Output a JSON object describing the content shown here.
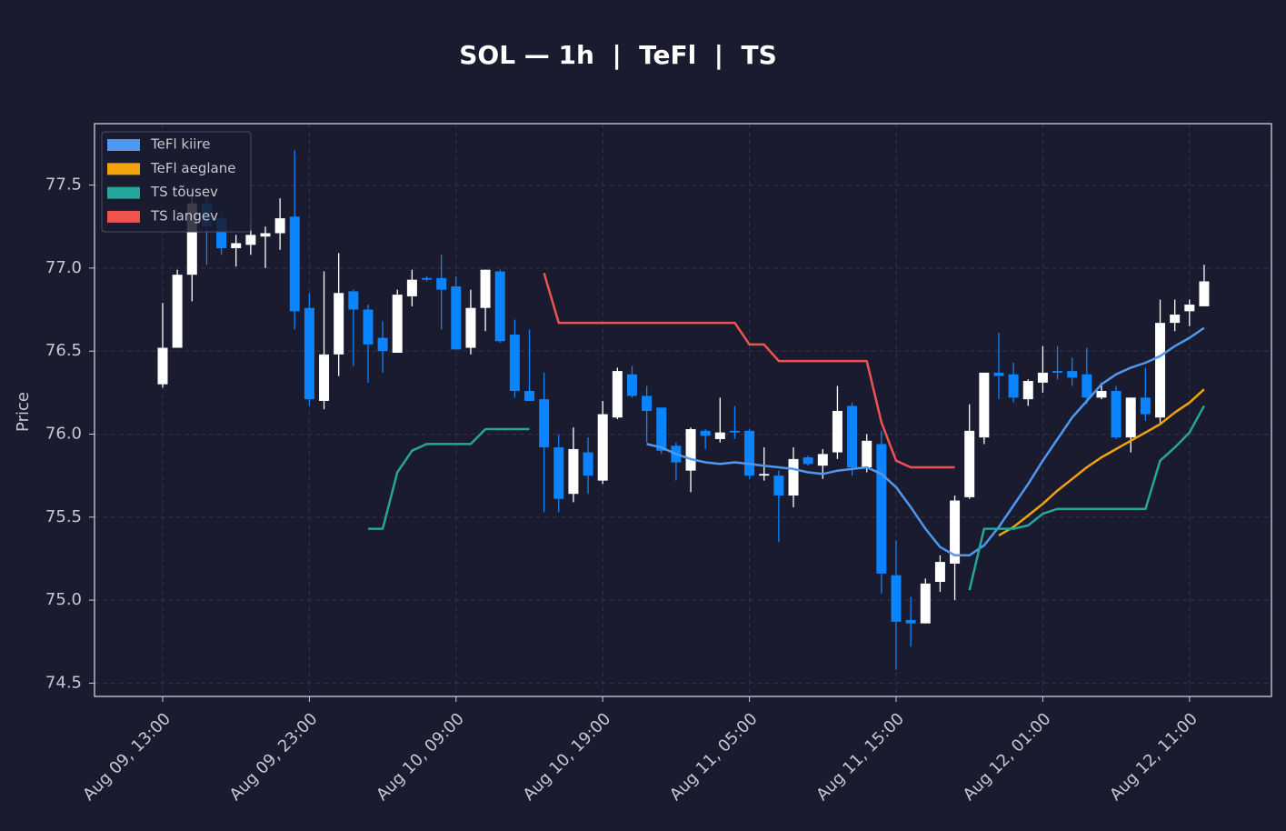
{
  "chart_data": {
    "type": "candlestick",
    "title": "SOL — 1h  |  TeFl  |  TS",
    "y_label": "Price",
    "x": [
      "Aug 09, 13:00",
      "Aug 09, 14:00",
      "Aug 09, 15:00",
      "Aug 09, 16:00",
      "Aug 09, 17:00",
      "Aug 09, 18:00",
      "Aug 09, 19:00",
      "Aug 09, 20:00",
      "Aug 09, 21:00",
      "Aug 09, 22:00",
      "Aug 09, 23:00",
      "Aug 10, 00:00",
      "Aug 10, 01:00",
      "Aug 10, 02:00",
      "Aug 10, 03:00",
      "Aug 10, 04:00",
      "Aug 10, 05:00",
      "Aug 10, 06:00",
      "Aug 10, 07:00",
      "Aug 10, 08:00",
      "Aug 10, 09:00",
      "Aug 10, 10:00",
      "Aug 10, 11:00",
      "Aug 10, 12:00",
      "Aug 10, 13:00",
      "Aug 10, 14:00",
      "Aug 10, 15:00",
      "Aug 10, 16:00",
      "Aug 10, 17:00",
      "Aug 10, 18:00",
      "Aug 10, 19:00",
      "Aug 10, 20:00",
      "Aug 10, 21:00",
      "Aug 10, 22:00",
      "Aug 10, 23:00",
      "Aug 11, 00:00",
      "Aug 11, 01:00",
      "Aug 11, 02:00",
      "Aug 11, 03:00",
      "Aug 11, 04:00",
      "Aug 11, 05:00",
      "Aug 11, 06:00",
      "Aug 11, 07:00",
      "Aug 11, 08:00",
      "Aug 11, 09:00",
      "Aug 11, 10:00",
      "Aug 11, 11:00",
      "Aug 11, 12:00",
      "Aug 11, 13:00",
      "Aug 11, 14:00",
      "Aug 11, 15:00",
      "Aug 11, 16:00",
      "Aug 11, 17:00",
      "Aug 11, 18:00",
      "Aug 11, 19:00",
      "Aug 11, 20:00",
      "Aug 11, 21:00",
      "Aug 11, 22:00",
      "Aug 11, 23:00",
      "Aug 12, 00:00",
      "Aug 12, 01:00",
      "Aug 12, 02:00",
      "Aug 12, 03:00",
      "Aug 12, 04:00",
      "Aug 12, 05:00",
      "Aug 12, 06:00",
      "Aug 12, 07:00",
      "Aug 12, 08:00",
      "Aug 12, 09:00",
      "Aug 12, 10:00",
      "Aug 12, 11:00",
      "Aug 12, 12:00"
    ],
    "open": [
      76.3,
      76.52,
      76.96,
      77.39,
      77.3,
      77.12,
      77.14,
      77.19,
      77.21,
      77.31,
      76.76,
      76.2,
      76.48,
      76.86,
      76.75,
      76.58,
      76.49,
      76.83,
      76.94,
      76.94,
      76.89,
      76.52,
      76.76,
      76.98,
      76.6,
      76.26,
      76.21,
      75.92,
      75.64,
      75.89,
      75.72,
      76.1,
      76.36,
      76.23,
      76.16,
      75.93,
      75.78,
      76.02,
      75.97,
      76.02,
      76.02,
      75.75,
      75.75,
      75.63,
      75.86,
      75.81,
      75.89,
      76.17,
      75.8,
      75.94,
      75.15,
      74.88,
      74.86,
      75.11,
      75.22,
      75.62,
      75.98,
      76.37,
      76.36,
      76.21,
      76.31,
      76.38,
      76.38,
      76.36,
      76.22,
      76.26,
      75.98,
      76.22,
      76.1,
      76.67,
      76.74,
      76.77
    ],
    "high": [
      76.79,
      76.99,
      77.45,
      77.45,
      77.34,
      77.2,
      77.27,
      77.25,
      77.42,
      77.71,
      76.85,
      76.98,
      77.09,
      76.87,
      76.78,
      76.68,
      76.87,
      76.99,
      76.95,
      77.08,
      76.95,
      76.87,
      76.99,
      76.99,
      76.69,
      76.63,
      76.37,
      76.0,
      76.04,
      75.98,
      76.2,
      76.4,
      76.41,
      76.29,
      76.16,
      75.95,
      76.04,
      76.03,
      76.22,
      76.17,
      76.03,
      75.92,
      75.78,
      75.92,
      75.87,
      75.91,
      76.29,
      76.19,
      76.0,
      76.02,
      75.36,
      75.02,
      75.13,
      75.27,
      75.63,
      76.18,
      76.37,
      76.61,
      76.43,
      76.33,
      76.53,
      76.53,
      76.46,
      76.52,
      76.31,
      76.29,
      76.22,
      76.4,
      76.81,
      76.81,
      76.81,
      77.02
    ],
    "low": [
      76.28,
      76.52,
      76.8,
      77.02,
      77.08,
      77.01,
      77.08,
      77.0,
      77.11,
      76.63,
      76.17,
      76.15,
      76.35,
      76.41,
      76.31,
      76.37,
      76.49,
      76.77,
      76.92,
      76.63,
      76.51,
      76.48,
      76.62,
      76.55,
      76.22,
      76.2,
      75.53,
      75.53,
      75.59,
      75.64,
      75.7,
      76.09,
      76.22,
      75.95,
      75.88,
      75.72,
      75.65,
      75.91,
      75.95,
      75.97,
      75.73,
      75.72,
      75.35,
      75.56,
      75.81,
      75.73,
      75.85,
      75.75,
      75.77,
      75.04,
      74.58,
      74.72,
      74.86,
      75.05,
      75.0,
      75.61,
      75.94,
      76.21,
      76.19,
      76.17,
      76.25,
      76.33,
      76.29,
      76.18,
      76.21,
      75.97,
      75.89,
      76.08,
      76.07,
      76.62,
      76.65,
      76.77
    ],
    "close": [
      76.52,
      76.96,
      77.39,
      77.25,
      77.12,
      77.15,
      77.2,
      77.21,
      77.3,
      76.74,
      76.21,
      76.48,
      76.85,
      76.75,
      76.54,
      76.5,
      76.84,
      76.93,
      76.93,
      76.87,
      76.51,
      76.76,
      76.99,
      76.56,
      76.26,
      76.2,
      75.92,
      75.61,
      75.91,
      75.75,
      76.12,
      76.38,
      76.23,
      76.14,
      75.9,
      75.83,
      76.03,
      75.99,
      76.01,
      76.01,
      75.75,
      75.76,
      75.63,
      75.85,
      75.82,
      75.88,
      76.14,
      75.8,
      75.96,
      75.16,
      74.87,
      74.86,
      75.1,
      75.23,
      75.6,
      76.02,
      76.37,
      76.35,
      76.22,
      76.32,
      76.37,
      76.37,
      76.34,
      76.22,
      76.26,
      75.98,
      76.22,
      76.12,
      76.67,
      76.72,
      76.78,
      76.92
    ],
    "up_color": "#ffffff",
    "down_color": "#0a84ff",
    "series": [
      {
        "name": "TeFl kiire",
        "color": "#4f97ef",
        "values": [
          null,
          null,
          null,
          null,
          null,
          null,
          null,
          null,
          null,
          null,
          null,
          null,
          null,
          null,
          null,
          null,
          null,
          null,
          null,
          null,
          null,
          null,
          null,
          null,
          null,
          null,
          null,
          null,
          null,
          null,
          null,
          null,
          null,
          75.94,
          75.92,
          75.88,
          75.85,
          75.83,
          75.82,
          75.83,
          75.82,
          75.81,
          75.8,
          75.79,
          75.77,
          75.76,
          75.78,
          75.79,
          75.8,
          75.76,
          75.68,
          75.56,
          75.43,
          75.32,
          75.27,
          75.27,
          75.33,
          75.44,
          75.57,
          75.7,
          75.84,
          75.97,
          76.1,
          76.2,
          76.3,
          76.36,
          76.4,
          76.43,
          76.47,
          76.53,
          76.58,
          76.64
        ]
      },
      {
        "name": "TeFl aeglane",
        "color": "#f0a30a",
        "values": [
          null,
          null,
          null,
          null,
          null,
          null,
          null,
          null,
          null,
          null,
          null,
          null,
          null,
          null,
          null,
          null,
          null,
          null,
          null,
          null,
          null,
          null,
          null,
          null,
          null,
          null,
          null,
          null,
          null,
          null,
          null,
          null,
          null,
          null,
          null,
          null,
          null,
          null,
          null,
          null,
          null,
          null,
          null,
          null,
          null,
          null,
          null,
          null,
          null,
          null,
          null,
          null,
          null,
          null,
          null,
          null,
          null,
          75.39,
          75.44,
          75.51,
          75.58,
          75.66,
          75.73,
          75.8,
          75.86,
          75.91,
          75.96,
          76.01,
          76.06,
          76.13,
          76.19,
          76.27
        ]
      },
      {
        "name": "TS tõusev",
        "color": "#26a69a",
        "values": [
          null,
          null,
          null,
          null,
          null,
          null,
          null,
          null,
          null,
          null,
          null,
          null,
          null,
          null,
          75.43,
          75.43,
          75.77,
          75.9,
          75.94,
          75.94,
          75.94,
          75.94,
          76.03,
          76.03,
          76.03,
          76.03,
          null,
          null,
          null,
          null,
          null,
          null,
          null,
          null,
          null,
          null,
          null,
          null,
          null,
          null,
          null,
          null,
          null,
          null,
          null,
          null,
          null,
          null,
          null,
          null,
          null,
          null,
          null,
          null,
          null,
          75.06,
          75.43,
          75.43,
          75.43,
          75.45,
          75.52,
          75.55,
          75.55,
          75.55,
          75.55,
          75.55,
          75.55,
          75.55,
          75.84,
          75.92,
          76.01,
          76.17
        ]
      },
      {
        "name": "TS langev",
        "color": "#ef5350",
        "values": [
          null,
          null,
          null,
          null,
          null,
          null,
          null,
          null,
          null,
          null,
          null,
          null,
          null,
          null,
          null,
          null,
          null,
          null,
          null,
          null,
          null,
          null,
          null,
          null,
          null,
          null,
          76.97,
          76.67,
          76.67,
          76.67,
          76.67,
          76.67,
          76.67,
          76.67,
          76.67,
          76.67,
          76.67,
          76.67,
          76.67,
          76.67,
          76.54,
          76.54,
          76.44,
          76.44,
          76.44,
          76.44,
          76.44,
          76.44,
          76.44,
          76.07,
          75.84,
          75.8,
          75.8,
          75.8,
          75.8,
          null,
          null,
          null,
          null,
          null,
          null,
          null,
          null,
          null,
          null,
          null,
          null,
          null,
          null,
          null,
          null,
          null
        ]
      }
    ],
    "ylim": [
      74.42,
      77.87
    ],
    "yticks": [
      74.5,
      {
        "value": 75,
        "label": "75.0"
      },
      75.5,
      {
        "value": 76,
        "label": "76.0"
      },
      76.5,
      {
        "value": 77,
        "label": "77.0"
      },
      77.5
    ],
    "xticks": [
      "Aug 09, 13:00",
      "Aug 09, 23:00",
      "Aug 10, 09:00",
      "Aug 10, 19:00",
      "Aug 11, 05:00",
      "Aug 11, 15:00",
      "Aug 12, 01:00",
      "Aug 12, 11:00"
    ],
    "grid": true,
    "legend": "upper left"
  }
}
